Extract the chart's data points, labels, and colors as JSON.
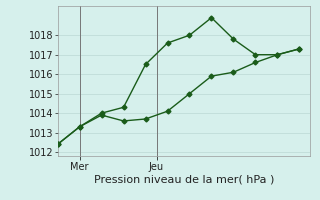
{
  "xlabel": "Pression niveau de la mer( hPa )",
  "bg_color": "#d6f0ec",
  "grid_color": "#c0dcd8",
  "line_color": "#1a5c1a",
  "line1_x": [
    0,
    1,
    2,
    3,
    4,
    5,
    6,
    7,
    8,
    9,
    10,
    11
  ],
  "line1_y": [
    1012.4,
    1013.3,
    1014.0,
    1014.3,
    1016.5,
    1017.6,
    1018.0,
    1018.9,
    1017.8,
    1017.0,
    1017.0,
    1017.3
  ],
  "line2_x": [
    0,
    1,
    2,
    3,
    4,
    5,
    6,
    7,
    8,
    9,
    10,
    11
  ],
  "line2_y": [
    1012.4,
    1013.3,
    1013.9,
    1013.6,
    1013.7,
    1014.1,
    1015.0,
    1015.9,
    1016.1,
    1016.6,
    1017.0,
    1017.3
  ],
  "vline_x": [
    1,
    4.5
  ],
  "vline_labels": [
    "Mer",
    "Jeu"
  ],
  "ylim": [
    1011.8,
    1019.5
  ],
  "yticks": [
    1012,
    1013,
    1014,
    1015,
    1016,
    1017,
    1018
  ],
  "xlim": [
    0,
    11.5
  ],
  "tick_fontsize": 7,
  "label_fontsize": 8
}
